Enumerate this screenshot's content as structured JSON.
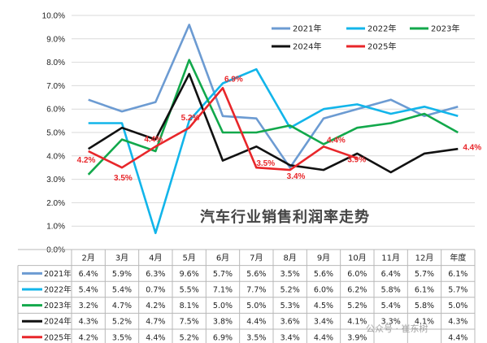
{
  "chart_data": {
    "type": "line",
    "title": "汽车行业销售利润率走势",
    "categories": [
      "2月",
      "3月",
      "4月",
      "5月",
      "6月",
      "7月",
      "8月",
      "9月",
      "10月",
      "11月",
      "12月",
      "年度"
    ],
    "ylim": [
      0,
      10
    ],
    "yticks": [
      "0.0%",
      "1.0%",
      "2.0%",
      "3.0%",
      "4.0%",
      "5.0%",
      "6.0%",
      "7.0%",
      "8.0%",
      "9.0%",
      "10.0%"
    ],
    "grid": true,
    "legend_position": "top-right",
    "series": [
      {
        "name": "2021年",
        "color": "#6c9bd2",
        "values": [
          6.4,
          5.9,
          6.3,
          9.6,
          5.7,
          5.6,
          3.5,
          5.6,
          6.0,
          6.4,
          5.7,
          6.1
        ],
        "table": [
          "6.4%",
          "5.9%",
          "6.3%",
          "9.6%",
          "5.7%",
          "5.6%",
          "3.5%",
          "5.6%",
          "6.0%",
          "6.4%",
          "5.7%",
          "6.1%"
        ]
      },
      {
        "name": "2022年",
        "color": "#12b5ea",
        "values": [
          5.4,
          5.4,
          0.7,
          5.5,
          7.1,
          7.7,
          5.2,
          6.0,
          6.2,
          5.8,
          6.1,
          5.7
        ],
        "table": [
          "5.4%",
          "5.4%",
          "0.7%",
          "5.5%",
          "7.1%",
          "7.7%",
          "5.2%",
          "6.0%",
          "6.2%",
          "5.8%",
          "6.1%",
          "5.7%"
        ]
      },
      {
        "name": "2023年",
        "color": "#12a84b",
        "values": [
          3.2,
          4.7,
          4.2,
          8.1,
          5.0,
          5.0,
          5.3,
          4.5,
          5.2,
          5.4,
          5.8,
          5.0
        ],
        "table": [
          "3.2%",
          "4.7%",
          "4.2%",
          "8.1%",
          "5.0%",
          "5.0%",
          "5.3%",
          "4.5%",
          "5.2%",
          "5.4%",
          "5.8%",
          "5.0%"
        ]
      },
      {
        "name": "2024年",
        "color": "#111111",
        "values": [
          4.3,
          5.2,
          4.7,
          7.5,
          3.8,
          4.4,
          3.6,
          3.4,
          4.1,
          3.3,
          4.1,
          4.3
        ],
        "table": [
          "4.3%",
          "5.2%",
          "4.7%",
          "7.5%",
          "3.8%",
          "4.4%",
          "3.6%",
          "3.4%",
          "4.1%",
          "3.3%",
          "4.1%",
          "4.3%"
        ]
      },
      {
        "name": "2025年",
        "color": "#e8262a",
        "values": [
          4.2,
          3.5,
          4.4,
          5.2,
          6.9,
          3.5,
          3.4,
          4.4,
          3.9,
          null,
          null,
          4.4
        ],
        "table": [
          "4.2%",
          "3.5%",
          "4.4%",
          "5.2%",
          "6.9%",
          "3.5%",
          "3.4%",
          "4.4%",
          "3.9%",
          "",
          "",
          "4.4%"
        ],
        "data_labels": [
          "4.2%",
          "3.5%",
          "4.4%",
          "5.2%",
          "6.9%",
          "3.5%",
          "3.4%",
          "4.4%",
          "3.9%",
          "",
          "",
          "4.4%"
        ]
      }
    ]
  },
  "watermark": "公众号 · 崔东树"
}
